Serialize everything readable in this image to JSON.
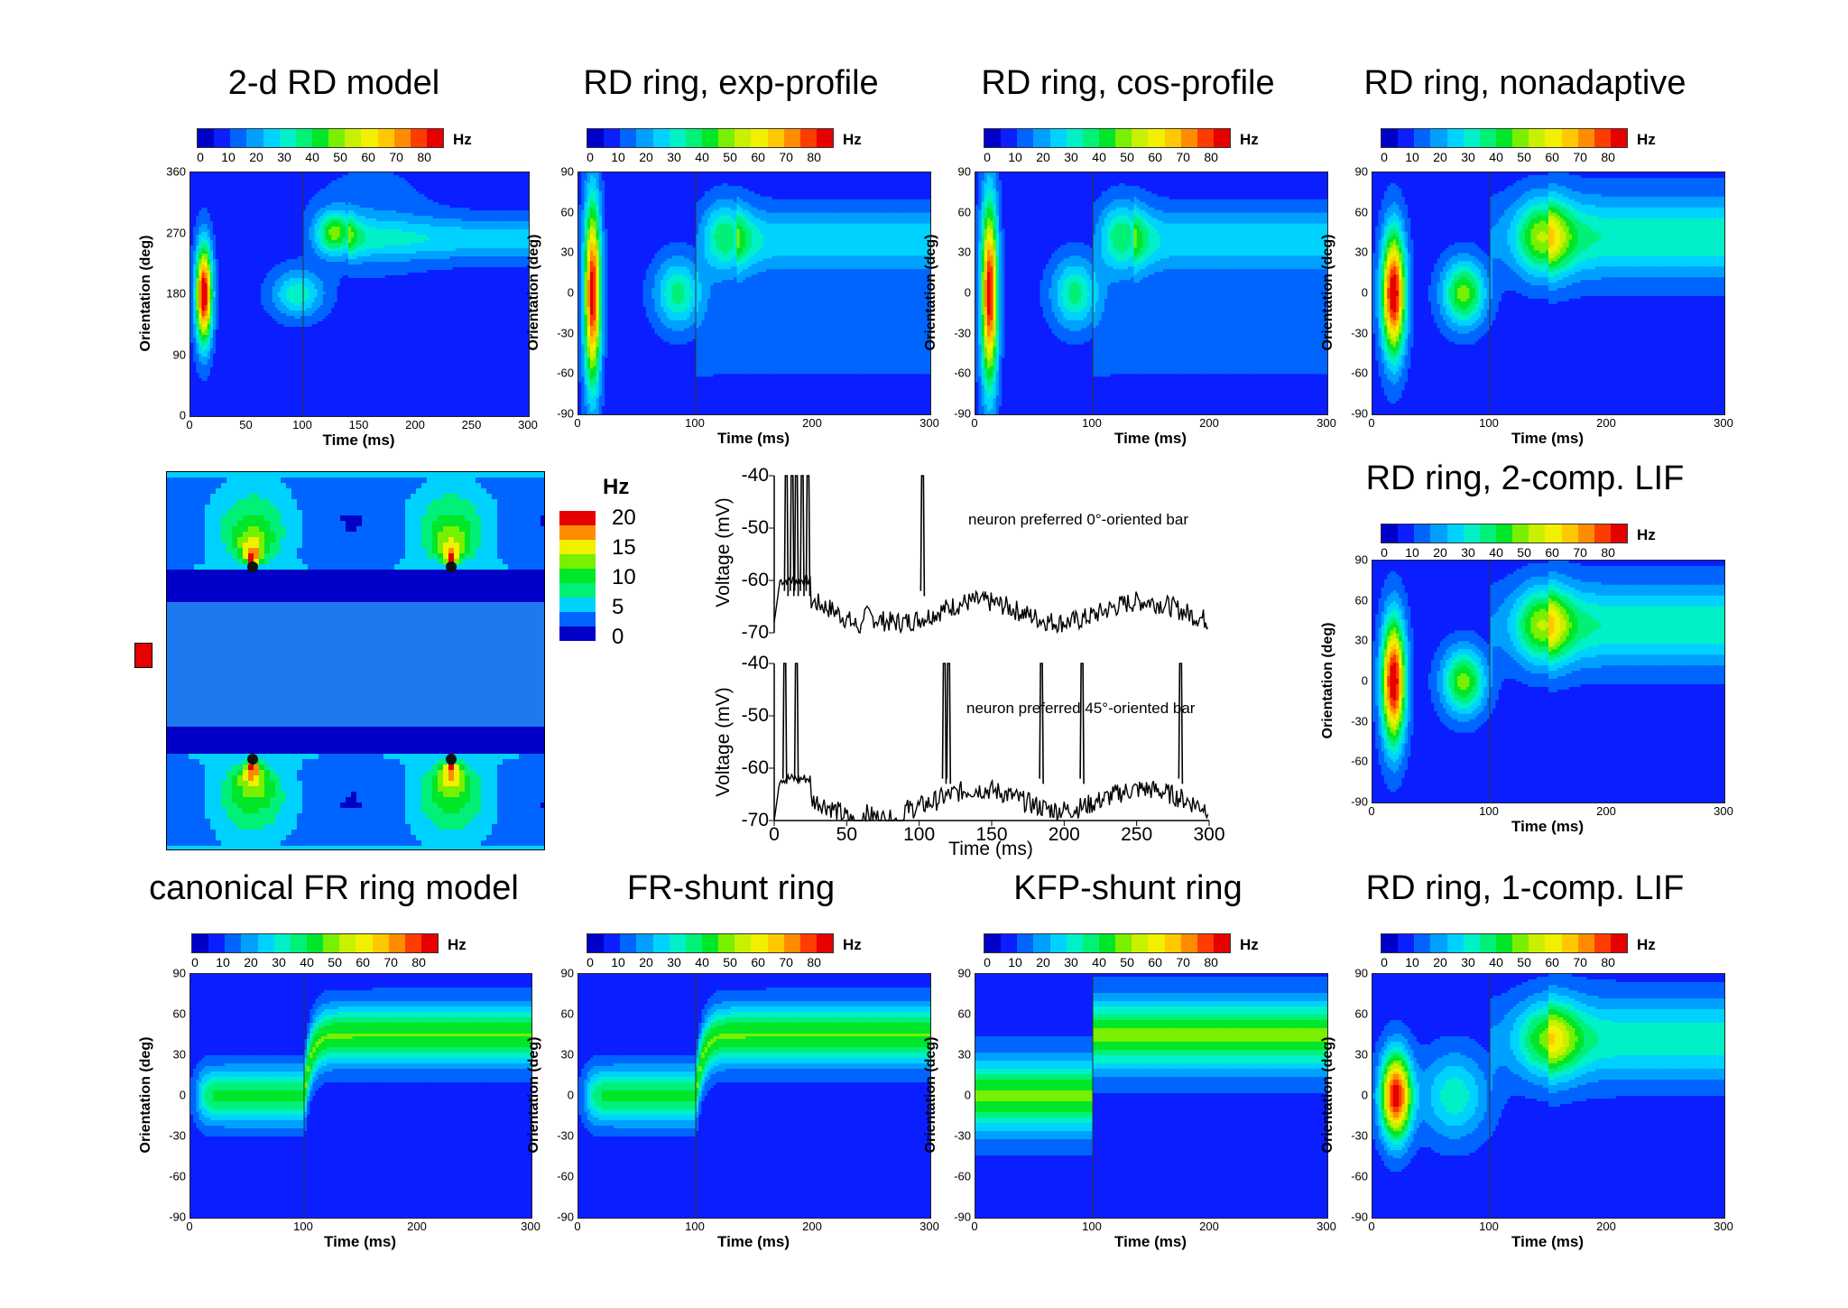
{
  "colormap": [
    "#0000c8",
    "#0a1eff",
    "#0064ff",
    "#00a0ff",
    "#00d2ff",
    "#00f0c8",
    "#00f078",
    "#00e628",
    "#78f000",
    "#c8f000",
    "#f0f000",
    "#ffc800",
    "#ff8c00",
    "#ff3c00",
    "#e60000"
  ],
  "heatmap_colorbar": {
    "unit": "Hz",
    "ticks": [
      "0",
      "10",
      "20",
      "30",
      "40",
      "50",
      "60",
      "70",
      "80"
    ]
  },
  "heatmap_common": {
    "xlabel": "Time (ms)",
    "ylabel": "Orientation (deg)"
  },
  "panels": [
    {
      "id": "rd2d",
      "title": "2-d RD model",
      "yticks": [
        "0",
        "90",
        "180",
        "270",
        "360"
      ],
      "xticks": [
        "0",
        "50",
        "100",
        "150",
        "200",
        "250",
        "300"
      ]
    },
    {
      "id": "exp",
      "title": "RD ring, exp-profile",
      "yticks": [
        "-90",
        "-60",
        "-30",
        "0",
        "30",
        "60",
        "90"
      ],
      "xticks": [
        "0",
        "100",
        "200",
        "300"
      ]
    },
    {
      "id": "cos",
      "title": "RD ring, cos-profile",
      "yticks": [
        "-90",
        "-60",
        "-30",
        "0",
        "30",
        "60",
        "90"
      ],
      "xticks": [
        "0",
        "100",
        "200",
        "300"
      ]
    },
    {
      "id": "nonad",
      "title": "RD ring, nonadaptive",
      "yticks": [
        "-90",
        "-60",
        "-30",
        "0",
        "30",
        "60",
        "90"
      ],
      "xticks": [
        "0",
        "100",
        "200",
        "300"
      ]
    },
    {
      "id": "lif2",
      "title": "RD ring, 2-comp. LIF",
      "yticks": [
        "-90",
        "-60",
        "-30",
        "0",
        "30",
        "60",
        "90"
      ],
      "xticks": [
        "0",
        "100",
        "200",
        "300"
      ]
    },
    {
      "id": "canon",
      "title": "canonical FR ring model",
      "yticks": [
        "-90",
        "-60",
        "-30",
        "0",
        "30",
        "60",
        "90"
      ],
      "xticks": [
        "0",
        "100",
        "200",
        "300"
      ]
    },
    {
      "id": "frshunt",
      "title": "FR-shunt ring",
      "yticks": [
        "-90",
        "-60",
        "-30",
        "0",
        "30",
        "60",
        "90"
      ],
      "xticks": [
        "0",
        "100",
        "200",
        "300"
      ]
    },
    {
      "id": "kfp",
      "title": "KFP-shunt ring",
      "yticks": [
        "-90",
        "-60",
        "-30",
        "0",
        "30",
        "60",
        "90"
      ],
      "xticks": [
        "0",
        "100",
        "200",
        "300"
      ]
    },
    {
      "id": "lif1",
      "title": "RD ring, 1-comp. LIF",
      "yticks": [
        "-90",
        "-60",
        "-30",
        "0",
        "30",
        "60",
        "90"
      ],
      "xticks": [
        "0",
        "100",
        "200",
        "300"
      ]
    }
  ],
  "map_legend": {
    "unit": "Hz",
    "levels": [
      "20",
      "15",
      "10",
      "5",
      "0"
    ]
  },
  "voltage": {
    "ylabel": "Voltage (mV)",
    "xlabel": "Time (ms)",
    "yticks": [
      "-40",
      "-50",
      "-60",
      "-70"
    ],
    "xticks": [
      "0",
      "50",
      "100",
      "150",
      "200",
      "250",
      "300"
    ],
    "top_annotation": "neuron preferred 0°-oriented bar",
    "bottom_annotation": "neuron preferred 45°-oriented bar"
  },
  "chart_data": [
    {
      "type": "heatmap",
      "title": "2-d RD model",
      "xlabel": "Time (ms)",
      "ylabel": "Orientation (deg)",
      "xlim": [
        0,
        300
      ],
      "ylim": [
        0,
        360
      ],
      "colorbar_range": [
        0,
        80
      ],
      "colorbar_unit": "Hz"
    },
    {
      "type": "heatmap",
      "title": "RD ring, exp-profile",
      "xlabel": "Time (ms)",
      "ylabel": "Orientation (deg)",
      "xlim": [
        0,
        300
      ],
      "ylim": [
        -90,
        90
      ],
      "colorbar_range": [
        0,
        80
      ],
      "colorbar_unit": "Hz"
    },
    {
      "type": "heatmap",
      "title": "RD ring, cos-profile",
      "xlabel": "Time (ms)",
      "ylabel": "Orientation (deg)",
      "xlim": [
        0,
        300
      ],
      "ylim": [
        -90,
        90
      ],
      "colorbar_range": [
        0,
        80
      ],
      "colorbar_unit": "Hz"
    },
    {
      "type": "heatmap",
      "title": "RD ring, nonadaptive",
      "xlabel": "Time (ms)",
      "ylabel": "Orientation (deg)",
      "xlim": [
        0,
        300
      ],
      "ylim": [
        -90,
        90
      ],
      "colorbar_range": [
        0,
        80
      ],
      "colorbar_unit": "Hz"
    },
    {
      "type": "heatmap",
      "title": "RD ring, 2-comp. LIF",
      "xlabel": "Time (ms)",
      "ylabel": "Orientation (deg)",
      "xlim": [
        0,
        300
      ],
      "ylim": [
        -90,
        90
      ],
      "colorbar_range": [
        0,
        80
      ],
      "colorbar_unit": "Hz"
    },
    {
      "type": "heatmap",
      "title": "canonical FR ring model",
      "xlabel": "Time (ms)",
      "ylabel": "Orientation (deg)",
      "xlim": [
        0,
        300
      ],
      "ylim": [
        -90,
        90
      ],
      "colorbar_range": [
        0,
        80
      ],
      "colorbar_unit": "Hz"
    },
    {
      "type": "heatmap",
      "title": "FR-shunt ring",
      "xlabel": "Time (ms)",
      "ylabel": "Orientation (deg)",
      "xlim": [
        0,
        300
      ],
      "ylim": [
        -90,
        90
      ],
      "colorbar_range": [
        0,
        80
      ],
      "colorbar_unit": "Hz"
    },
    {
      "type": "heatmap",
      "title": "KFP-shunt ring",
      "xlabel": "Time (ms)",
      "ylabel": "Orientation (deg)",
      "xlim": [
        0,
        300
      ],
      "ylim": [
        -90,
        90
      ],
      "colorbar_range": [
        0,
        80
      ],
      "colorbar_unit": "Hz"
    },
    {
      "type": "heatmap",
      "title": "RD ring, 1-comp. LIF",
      "xlabel": "Time (ms)",
      "ylabel": "Orientation (deg)",
      "xlim": [
        0,
        300
      ],
      "ylim": [
        -90,
        90
      ],
      "colorbar_range": [
        0,
        80
      ],
      "colorbar_unit": "Hz"
    },
    {
      "type": "heatmap",
      "title": "",
      "colorbar_unit": "Hz",
      "colorbar_levels": [
        0,
        5,
        10,
        15,
        20
      ]
    },
    {
      "type": "line",
      "xlabel": "Time (ms)",
      "ylabel": "Voltage (mV)",
      "xlim": [
        0,
        300
      ],
      "ylim": [
        -70,
        -40
      ],
      "annotation": "neuron preferred 0°-oriented bar",
      "spike_times": [
        8,
        12,
        15,
        19,
        23,
        102
      ]
    },
    {
      "type": "line",
      "xlabel": "Time (ms)",
      "ylabel": "Voltage (mV)",
      "xlim": [
        0,
        300
      ],
      "ylim": [
        -70,
        -40
      ],
      "annotation": "neuron preferred 45°-oriented bar",
      "spike_times": [
        7,
        15,
        117,
        120,
        184,
        212,
        280
      ]
    }
  ]
}
